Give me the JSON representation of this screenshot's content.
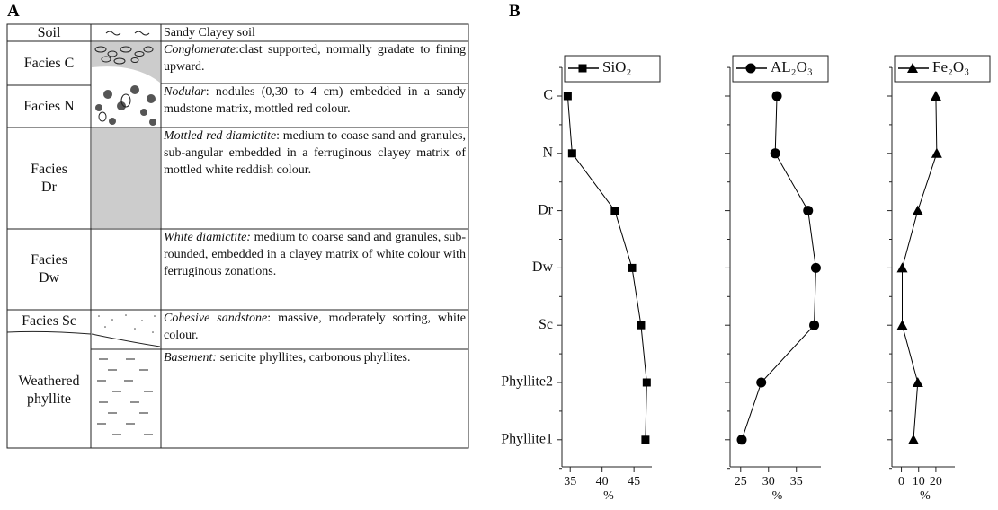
{
  "panel_a": {
    "label": "A",
    "table": {
      "rows": [
        {
          "facies": "Soil",
          "term": "",
          "description": "Sandy Clayey soil"
        },
        {
          "facies": "Facies C",
          "term": "Conglomerate",
          "description": ":clast supported,   normally gradate to fining upward."
        },
        {
          "facies": "Facies N",
          "term": "Nodular",
          "description": ": nodules (0,30 to 4 cm) embedded in a sandy mudstone matrix, mottled red colour."
        },
        {
          "facies": "Facies Dr",
          "term": "Mottled red diamictite",
          "description": ": medium to coase sand and granules, sub-angular embedded in a ferruginous clayey matrix of  mottled white reddish colour."
        },
        {
          "facies": "Facies Dw",
          "term": "White diamictite:",
          "description": "  medium to coarse sand and granules, sub-rounded, embedded  in a clayey matrix of white colour with ferruginous zonations."
        },
        {
          "facies": "Facies Sc",
          "term": "Cohesive  sandstone",
          "description": ":  massive, moderately sorting, white colour."
        },
        {
          "facies": "Weathered phyllite",
          "term": "Basement:",
          "description": " sericite phyllites, carbonous phyllites."
        }
      ]
    }
  },
  "panel_b": {
    "label": "B"
  },
  "chart_data": [
    {
      "type": "line",
      "categories": [
        "C",
        "N",
        "Dr",
        "Dw",
        "Sc",
        "Phyllite2",
        "Phyllite1"
      ],
      "series": [
        {
          "name": "SiO₂",
          "color": "#000000",
          "marker": "square",
          "values": [
            34.6,
            35.3,
            42.0,
            44.7,
            46.1,
            47.0,
            46.8
          ]
        }
      ],
      "xlim": [
        33.7,
        47.8
      ],
      "xticks": [
        35,
        40,
        45
      ],
      "xlabel": "%"
    },
    {
      "type": "line",
      "categories": [
        "C",
        "N",
        "Dr",
        "Dw",
        "Sc",
        "Phyllite2",
        "Phyllite1"
      ],
      "series": [
        {
          "name": "AL₂O₃",
          "color": "#000000",
          "marker": "circle",
          "values": [
            31.5,
            31.2,
            37.1,
            38.5,
            38.2,
            28.7,
            25.2
          ]
        }
      ],
      "xlim": [
        23.1,
        39.4
      ],
      "xticks": [
        25,
        30,
        35
      ],
      "xlabel": "%"
    },
    {
      "type": "line",
      "categories": [
        "C",
        "N",
        "Dr",
        "Dw",
        "Sc",
        "Phyllite2",
        "Phyllite1"
      ],
      "series": [
        {
          "name": "Fe₂O₃",
          "color": "#000000",
          "marker": "triangle",
          "values": [
            20,
            20.5,
            9.5,
            0.5,
            0.5,
            9.5,
            7
          ]
        }
      ],
      "xlim": [
        -5.5,
        31
      ],
      "xticks": [
        0,
        10,
        20
      ],
      "xlabel": "%"
    }
  ]
}
